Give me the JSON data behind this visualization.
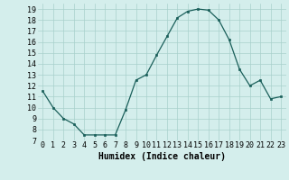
{
  "x": [
    0,
    1,
    2,
    3,
    4,
    5,
    6,
    7,
    8,
    9,
    10,
    11,
    12,
    13,
    14,
    15,
    16,
    17,
    18,
    19,
    20,
    21,
    22,
    23
  ],
  "y": [
    11.5,
    10.0,
    9.0,
    8.5,
    7.5,
    7.5,
    7.5,
    7.5,
    9.8,
    12.5,
    13.0,
    14.8,
    16.5,
    18.2,
    18.8,
    19.0,
    18.9,
    18.0,
    16.2,
    13.5,
    12.0,
    12.5,
    10.8,
    11.0
  ],
  "xlabel": "Humidex (Indice chaleur)",
  "ylabel": "",
  "bg_color": "#d4eeec",
  "line_color": "#1a5f5a",
  "marker_color": "#1a5f5a",
  "grid_color": "#a8d0cc",
  "xlim": [
    -0.5,
    23.5
  ],
  "ylim": [
    7,
    19.5
  ],
  "yticks": [
    7,
    8,
    9,
    10,
    11,
    12,
    13,
    14,
    15,
    16,
    17,
    18,
    19
  ],
  "xticks": [
    0,
    1,
    2,
    3,
    4,
    5,
    6,
    7,
    8,
    9,
    10,
    11,
    12,
    13,
    14,
    15,
    16,
    17,
    18,
    19,
    20,
    21,
    22,
    23
  ],
  "xlabel_fontsize": 7,
  "tick_fontsize": 6
}
